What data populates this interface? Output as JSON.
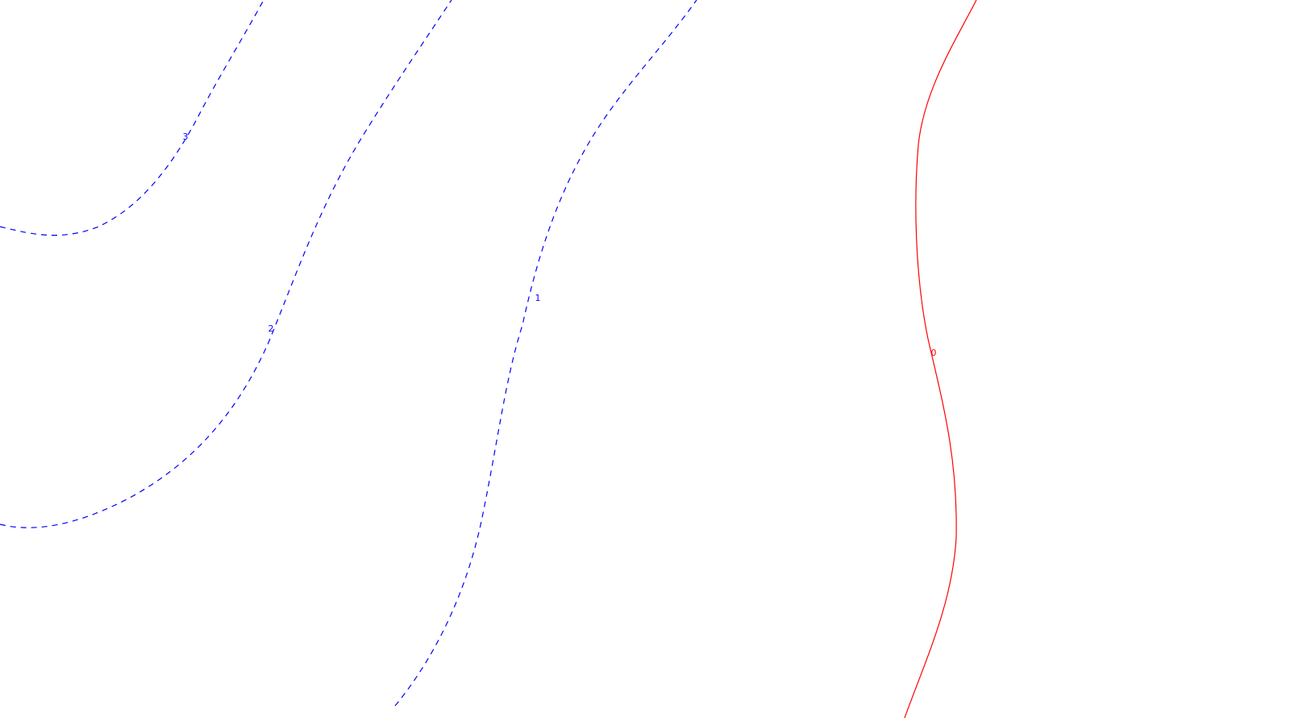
{
  "chart_data": {
    "type": "contour",
    "title": "",
    "xlabel": "",
    "ylabel": "",
    "grid": false,
    "colors": {
      "negative": "#0000ff",
      "zero": "#ff0000",
      "background": "#ffffff"
    },
    "contours": [
      {
        "level": "3",
        "label": "3",
        "style": "dashed",
        "color": "#0000ff"
      },
      {
        "level": "2",
        "label": "2",
        "style": "dashed",
        "color": "#0000ff"
      },
      {
        "level": "1",
        "label": "1",
        "style": "dashed",
        "color": "#0000ff"
      },
      {
        "level": "0",
        "label": "0",
        "style": "solid",
        "color": "#ff0000"
      }
    ]
  }
}
